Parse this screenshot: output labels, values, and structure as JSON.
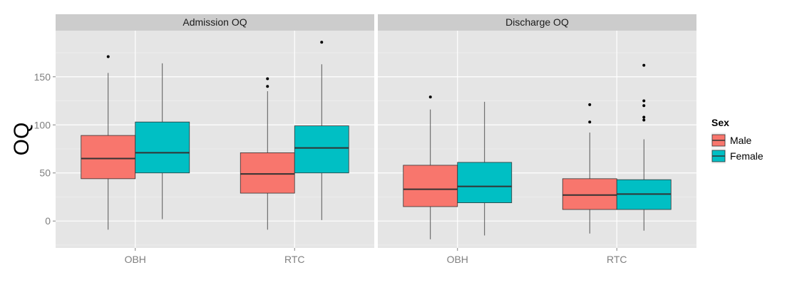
{
  "chart_data": {
    "type": "boxplot",
    "ylabel": "OQ",
    "ylim": [
      -28,
      198
    ],
    "yticks": [
      0,
      50,
      100,
      150
    ],
    "y_tick_labels": [
      "0",
      "50",
      "100",
      "150"
    ],
    "categories": [
      "OBH",
      "RTC"
    ],
    "legend": {
      "title": "Sex",
      "placement": "right",
      "entries": [
        {
          "name": "Male",
          "color": "#F8766D"
        },
        {
          "name": "Female",
          "color": "#00BFC4"
        }
      ]
    },
    "grid": true,
    "panels": [
      {
        "title": "Admission OQ",
        "groups": [
          {
            "category": "OBH",
            "series": "Male",
            "min": -9,
            "q1": 44,
            "median": 65,
            "q3": 89,
            "max": 154,
            "outliers": [
              171
            ]
          },
          {
            "category": "OBH",
            "series": "Female",
            "min": 2,
            "q1": 50,
            "median": 71,
            "q3": 103,
            "max": 164,
            "outliers": []
          },
          {
            "category": "RTC",
            "series": "Male",
            "min": -9,
            "q1": 29,
            "median": 49,
            "q3": 71,
            "max": 135,
            "outliers": [
              140,
              148
            ]
          },
          {
            "category": "RTC",
            "series": "Female",
            "min": 1,
            "q1": 50,
            "median": 76,
            "q3": 99,
            "max": 163,
            "outliers": [
              186
            ]
          }
        ]
      },
      {
        "title": "Discharge OQ",
        "groups": [
          {
            "category": "OBH",
            "series": "Male",
            "min": -19,
            "q1": 15,
            "median": 33,
            "q3": 58,
            "max": 116,
            "outliers": [
              129
            ]
          },
          {
            "category": "OBH",
            "series": "Female",
            "min": -15,
            "q1": 19,
            "median": 36,
            "q3": 61,
            "max": 124,
            "outliers": []
          },
          {
            "category": "RTC",
            "series": "Male",
            "min": -13,
            "q1": 12,
            "median": 27,
            "q3": 44,
            "max": 92,
            "outliers": [
              103,
              121
            ]
          },
          {
            "category": "RTC",
            "series": "Female",
            "min": -10,
            "q1": 12,
            "median": 28,
            "q3": 43,
            "max": 85,
            "outliers": [
              105,
              108,
              120,
              125,
              162
            ]
          }
        ]
      }
    ]
  }
}
